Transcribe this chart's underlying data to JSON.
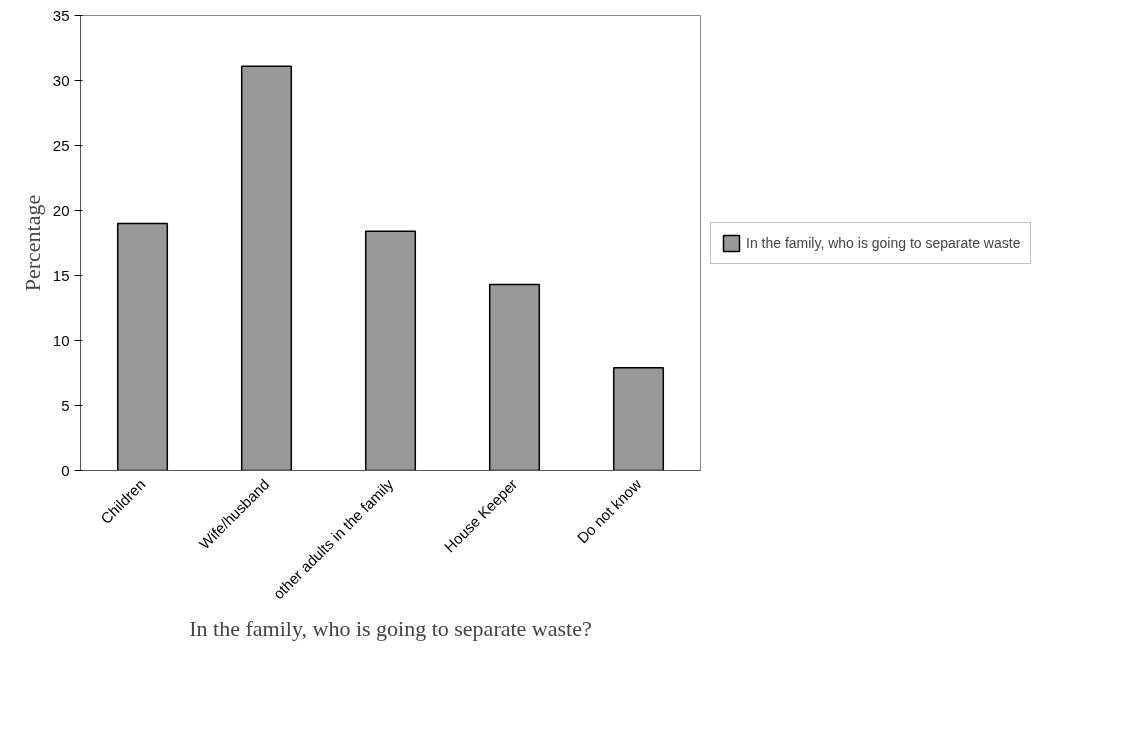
{
  "chart_data": {
    "type": "bar",
    "xlabel": "In the family, who is going to separate waste?",
    "ylabel": "Percentage",
    "categories": [
      "Children",
      "Wife/husband",
      "other adults in the family",
      "House Keeper",
      "Do not know"
    ],
    "series": [
      {
        "name": "In the family, who is going to separate waste",
        "color": "#999999",
        "values": [
          19.0,
          31.1,
          18.4,
          14.3,
          7.9
        ]
      }
    ],
    "ylim": [
      0,
      35
    ],
    "yticks": [
      0,
      5,
      10,
      15,
      20,
      25,
      30,
      35
    ],
    "grid": false,
    "legend": "right"
  }
}
